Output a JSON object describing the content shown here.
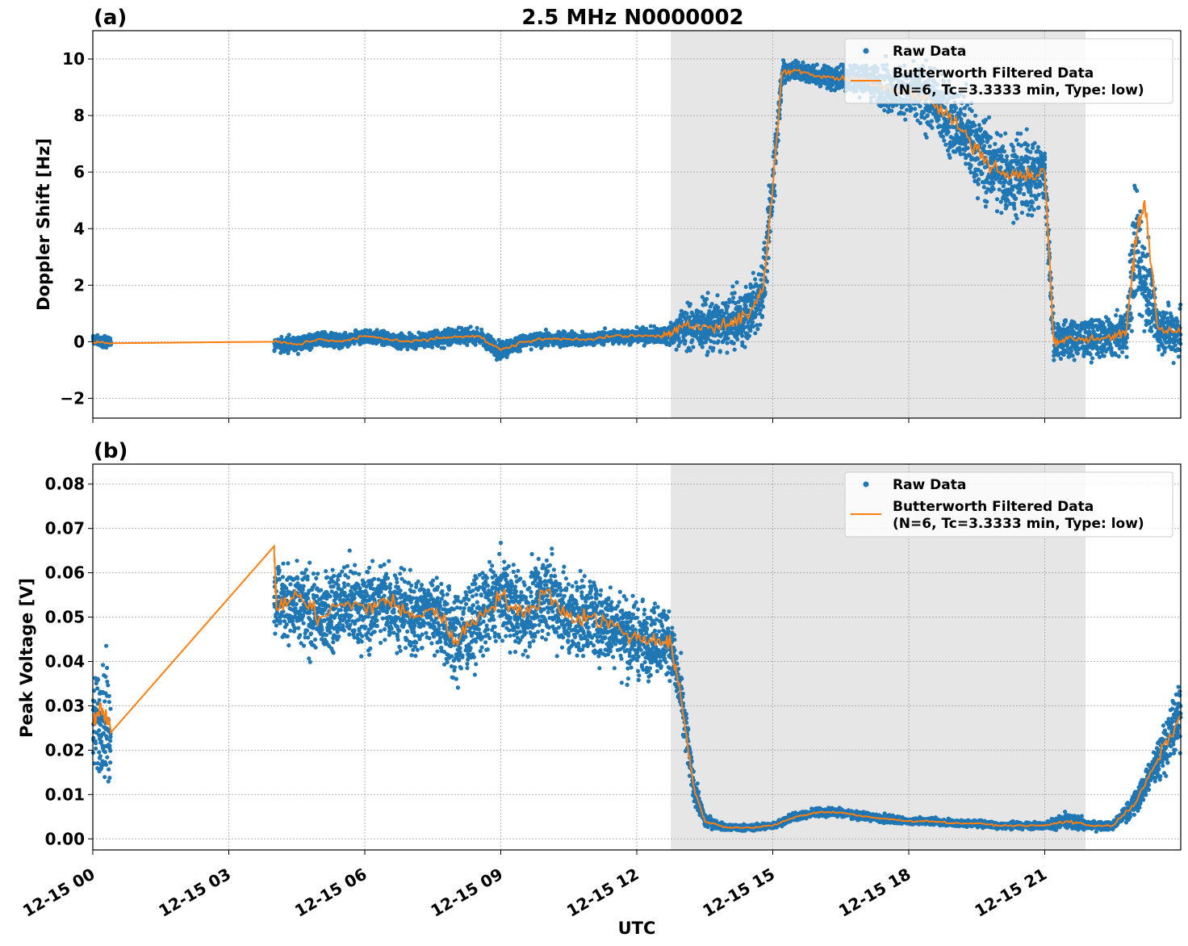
{
  "title": "2.5 MHz N0000002",
  "xlabel": "UTC",
  "x_tick_labels": [
    "12-15 00",
    "12-15 03",
    "12-15 06",
    "12-15 09",
    "12-15 12",
    "12-15 15",
    "12-15 18",
    "12-15 21"
  ],
  "legend": {
    "raw_label": "Raw Data",
    "filtered_line1": "Butterworth Filtered Data",
    "filtered_line2": "(N=6, Tc=3.3333 min, Type: low)"
  },
  "colors": {
    "raw": "#1f77b4",
    "filtered": "#ff7f0e",
    "shade": "#e6e6e6"
  },
  "chart_data": [
    {
      "panel": "(a)",
      "type": "scatter",
      "ylabel": "Doppler Shift [Hz]",
      "xlim_hours": [
        0,
        24
      ],
      "ylim": [
        -2.7,
        11
      ],
      "yticks": [
        -2,
        0,
        2,
        4,
        6,
        8,
        10
      ],
      "ytick_labels": [
        "−2",
        "0",
        "2",
        "4",
        "6",
        "8",
        "10"
      ],
      "shaded_interval_hours": [
        12.75,
        21.9
      ],
      "legend_position": "top-right",
      "series": [
        {
          "name": "Raw Data",
          "style": "points",
          "segments": [
            {
              "x": [
                0,
                0.2,
                0.4
              ],
              "center": [
                0.1,
                0.0,
                0.0
              ],
              "spread": [
                0.3,
                0.3,
                0.3
              ]
            },
            {
              "x": [
                4.0,
                4.5,
                5.0,
                5.5,
                6.0,
                6.5,
                7.0,
                7.5,
                8.0,
                8.5,
                9.0,
                9.5,
                10.0,
                10.5,
                11.0,
                11.5,
                12.0,
                12.5,
                12.75,
                13.0,
                13.5,
                14.0,
                14.5,
                14.8,
                15.0,
                15.2,
                15.5,
                16.0,
                16.5,
                17.0,
                17.5,
                18.0,
                18.5,
                19.0,
                19.5,
                20.0,
                20.5,
                21.0,
                21.2,
                21.5,
                22.0,
                22.5,
                22.8,
                23.0,
                23.5,
                24.0
              ],
              "center": [
                -0.1,
                -0.1,
                0.1,
                0.0,
                0.2,
                0.1,
                0.0,
                0.1,
                0.2,
                0.2,
                -0.3,
                0.0,
                0.1,
                0.1,
                0.1,
                0.2,
                0.2,
                0.2,
                0.3,
                0.5,
                0.6,
                0.6,
                1.0,
                2.0,
                5.5,
                9.5,
                9.6,
                9.4,
                9.3,
                9.3,
                9.0,
                8.8,
                8.5,
                7.8,
                6.8,
                6.0,
                5.8,
                6.0,
                0.0,
                0.1,
                0.1,
                0.2,
                0.3,
                3.5,
                0.5,
                0.3
              ],
              "spread": [
                0.4,
                0.4,
                0.4,
                0.4,
                0.4,
                0.4,
                0.4,
                0.5,
                0.5,
                0.4,
                0.5,
                0.4,
                0.4,
                0.4,
                0.4,
                0.4,
                0.4,
                0.5,
                0.7,
                1.2,
                1.4,
                1.5,
                1.6,
                1.8,
                2.0,
                0.8,
                0.6,
                0.6,
                0.8,
                1.0,
                1.3,
                1.6,
                1.9,
                2.2,
                2.3,
                2.4,
                2.4,
                2.2,
                1.2,
                1.1,
                1.1,
                1.1,
                1.2,
                4.0,
                1.2,
                1.5
              ]
            }
          ]
        },
        {
          "name": "Butterworth Filtered Data (N=6, Tc=3.3333 min, Type: low)",
          "style": "line",
          "x": [
            0,
            0.4,
            4.0,
            4.5,
            5.0,
            5.5,
            6.0,
            6.5,
            7.0,
            7.5,
            8.0,
            8.5,
            9.0,
            9.5,
            10.0,
            10.5,
            11.0,
            11.5,
            12.0,
            12.5,
            12.75,
            13.0,
            13.5,
            14.0,
            14.5,
            14.8,
            15.0,
            15.2,
            15.5,
            16.0,
            16.5,
            17.0,
            17.5,
            18.0,
            18.5,
            19.0,
            19.5,
            20.0,
            20.5,
            21.0,
            21.2,
            21.5,
            22.0,
            22.5,
            22.8,
            23.0,
            23.2,
            23.5,
            24.0
          ],
          "y": [
            0.0,
            -0.05,
            0.0,
            -0.1,
            0.1,
            0.0,
            0.2,
            0.1,
            0.0,
            0.1,
            0.2,
            0.2,
            -0.3,
            0.0,
            0.1,
            0.1,
            0.1,
            0.2,
            0.2,
            0.2,
            0.3,
            0.5,
            0.6,
            0.6,
            1.0,
            2.0,
            5.5,
            9.5,
            9.6,
            9.4,
            9.3,
            9.3,
            9.0,
            8.8,
            8.5,
            7.8,
            6.8,
            6.0,
            5.8,
            6.0,
            0.0,
            0.1,
            0.1,
            0.2,
            0.3,
            3.5,
            5.0,
            0.5,
            0.3
          ]
        }
      ]
    },
    {
      "panel": "(b)",
      "type": "scatter",
      "ylabel": "Peak Voltage [V]",
      "xlim_hours": [
        0,
        24
      ],
      "ylim": [
        -0.0025,
        0.0845
      ],
      "yticks": [
        0.0,
        0.01,
        0.02,
        0.03,
        0.04,
        0.05,
        0.06,
        0.07,
        0.08
      ],
      "ytick_labels": [
        "0.00",
        "0.01",
        "0.02",
        "0.03",
        "0.04",
        "0.05",
        "0.06",
        "0.07",
        "0.08"
      ],
      "shaded_interval_hours": [
        12.75,
        21.9
      ],
      "legend_position": "top-right",
      "series": [
        {
          "name": "Raw Data",
          "style": "points",
          "segments": [
            {
              "x": [
                0,
                0.2,
                0.4
              ],
              "center": [
                0.025,
                0.028,
                0.025
              ],
              "spread": [
                0.02,
                0.02,
                0.02
              ]
            },
            {
              "x": [
                4.0,
                4.5,
                5.0,
                5.5,
                6.0,
                6.5,
                7.0,
                7.5,
                8.0,
                8.5,
                9.0,
                9.5,
                10.0,
                10.5,
                11.0,
                11.5,
                12.0,
                12.5,
                12.75,
                13.0,
                13.25,
                13.5,
                14.0,
                14.5,
                15.0,
                15.5,
                16.0,
                16.5,
                17.0,
                17.5,
                18.0,
                18.5,
                19.0,
                19.5,
                20.0,
                20.5,
                21.0,
                21.5,
                22.0,
                22.5,
                23.0,
                23.5,
                24.0
              ],
              "center": [
                0.055,
                0.052,
                0.05,
                0.053,
                0.052,
                0.054,
                0.05,
                0.052,
                0.045,
                0.05,
                0.055,
                0.05,
                0.056,
                0.05,
                0.05,
                0.048,
                0.045,
                0.045,
                0.044,
                0.03,
                0.012,
                0.004,
                0.0025,
                0.0025,
                0.003,
                0.005,
                0.006,
                0.006,
                0.005,
                0.0045,
                0.004,
                0.004,
                0.0035,
                0.0035,
                0.003,
                0.003,
                0.003,
                0.004,
                0.003,
                0.003,
                0.008,
                0.018,
                0.028
              ],
              "spread": [
                0.015,
                0.015,
                0.015,
                0.015,
                0.015,
                0.015,
                0.015,
                0.015,
                0.017,
                0.016,
                0.015,
                0.015,
                0.015,
                0.015,
                0.015,
                0.015,
                0.014,
                0.014,
                0.012,
                0.012,
                0.006,
                0.002,
                0.0012,
                0.0012,
                0.0012,
                0.0015,
                0.0015,
                0.0015,
                0.0015,
                0.0015,
                0.0012,
                0.0012,
                0.0012,
                0.0012,
                0.0012,
                0.0012,
                0.0012,
                0.003,
                0.0015,
                0.0015,
                0.004,
                0.008,
                0.012
              ]
            }
          ]
        },
        {
          "name": "Butterworth Filtered Data (N=6, Tc=3.3333 min, Type: low)",
          "style": "line",
          "x": [
            0,
            0.15,
            0.3,
            0.4,
            4.0,
            4.05,
            4.5,
            5.0,
            5.5,
            6.0,
            6.5,
            7.0,
            7.5,
            8.0,
            8.5,
            9.0,
            9.5,
            10.0,
            10.5,
            11.0,
            11.5,
            12.0,
            12.5,
            12.75,
            13.0,
            13.25,
            13.5,
            14.0,
            14.5,
            15.0,
            15.5,
            16.0,
            16.5,
            17.0,
            17.5,
            18.0,
            18.5,
            19.0,
            19.5,
            20.0,
            20.5,
            21.0,
            21.5,
            22.0,
            22.5,
            23.0,
            23.5,
            24.0
          ],
          "y": [
            0.026,
            0.03,
            0.028,
            0.024,
            0.066,
            0.052,
            0.055,
            0.05,
            0.053,
            0.052,
            0.054,
            0.05,
            0.052,
            0.045,
            0.05,
            0.055,
            0.05,
            0.056,
            0.05,
            0.05,
            0.048,
            0.045,
            0.045,
            0.044,
            0.03,
            0.012,
            0.004,
            0.0025,
            0.0025,
            0.003,
            0.005,
            0.006,
            0.006,
            0.005,
            0.0045,
            0.004,
            0.004,
            0.0035,
            0.0035,
            0.003,
            0.003,
            0.003,
            0.004,
            0.003,
            0.003,
            0.008,
            0.018,
            0.028
          ]
        }
      ]
    }
  ]
}
